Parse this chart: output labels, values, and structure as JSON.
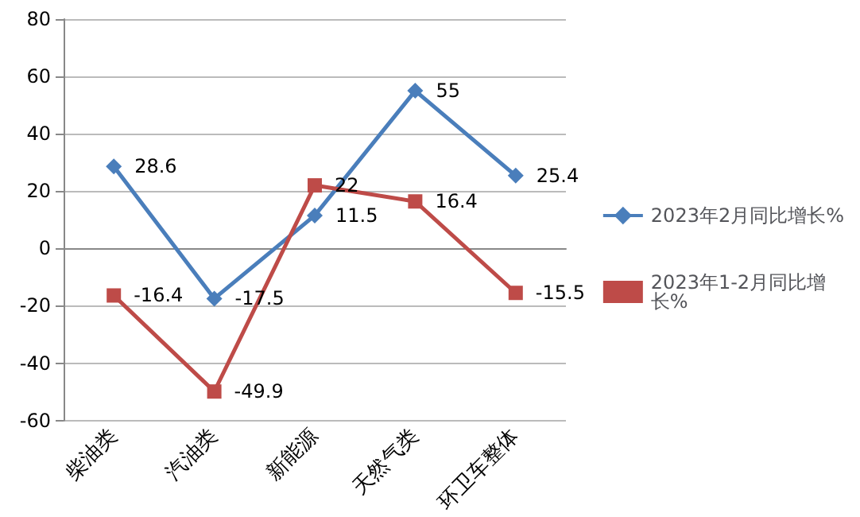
{
  "chart_data": {
    "type": "line",
    "categories": [
      "柴油类",
      "汽油类",
      "新能源",
      "天然气类",
      "环卫车整体"
    ],
    "series": [
      {
        "name": "2023年2月同比增长%",
        "color": "#4a7ebb",
        "marker": "diamond",
        "values": [
          28.6,
          -17.5,
          11.5,
          55,
          25.4
        ]
      },
      {
        "name": "2023年1-2月同比增长%",
        "color": "#be4b48",
        "marker": "square",
        "values": [
          -16.4,
          -49.9,
          22,
          16.4,
          -15.5
        ]
      }
    ],
    "ylim": [
      -60,
      80
    ],
    "yticks": [
      -60,
      -40,
      -20,
      0,
      20,
      40,
      60,
      80
    ],
    "grid": "y",
    "legend": "right",
    "data_labels": true,
    "line_style": "solid"
  }
}
